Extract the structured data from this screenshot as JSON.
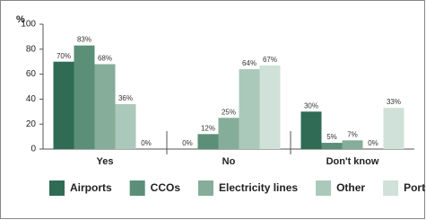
{
  "chart_data": {
    "type": "bar",
    "y_label": "%",
    "categories": [
      "Yes",
      "No",
      "Don't know"
    ],
    "series": [
      {
        "name": "Airports",
        "color": "#2f6b55",
        "values": [
          70,
          0,
          30
        ],
        "value_labels": [
          "70%",
          "0%",
          "30%"
        ]
      },
      {
        "name": "CCOs",
        "color": "#5b8f78",
        "values": [
          83,
          12,
          5
        ],
        "value_labels": [
          "83%",
          "12%",
          "5%"
        ]
      },
      {
        "name": "Electricity lines",
        "color": "#86ad99",
        "values": [
          68,
          25,
          7
        ],
        "value_labels": [
          "68%",
          "25%",
          "7%"
        ]
      },
      {
        "name": "Other",
        "color": "#abc9ba",
        "values": [
          36,
          64,
          0
        ],
        "value_labels": [
          "36%",
          "64%",
          "0%"
        ]
      },
      {
        "name": "Ports",
        "color": "#cfe1d8",
        "values": [
          0,
          67,
          33
        ],
        "value_labels": [
          "0%",
          "67%",
          "33%"
        ]
      }
    ],
    "ylim": [
      0,
      100
    ],
    "yticks": [
      0,
      20,
      40,
      60,
      80,
      100
    ],
    "legend": "bottom"
  }
}
